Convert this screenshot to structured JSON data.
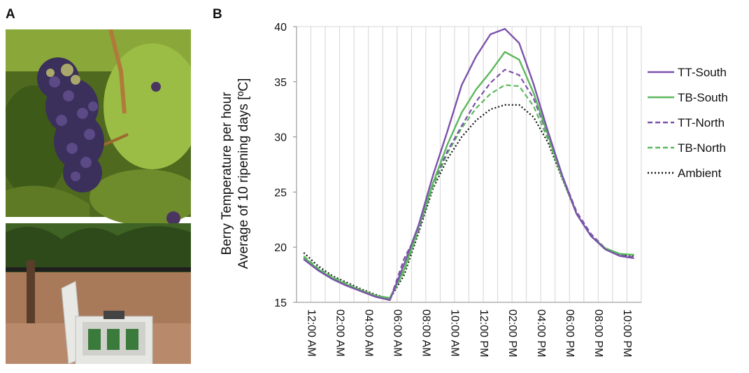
{
  "panels": {
    "a_label": "A",
    "b_label": "B"
  },
  "chart_data": {
    "type": "line",
    "ylabel_line1": "Berry Temperature per hour",
    "ylabel_line2": "Average of 10 ripening days [ºC]",
    "ylim": [
      15,
      40
    ],
    "yticks": [
      "15",
      "20",
      "25",
      "30",
      "35",
      "40"
    ],
    "x": [
      "12:00 AM",
      "01:00 AM",
      "02:00 AM",
      "03:00 AM",
      "04:00 AM",
      "05:00 AM",
      "06:00 AM",
      "07:00 AM",
      "08:00 AM",
      "09:00 AM",
      "10:00 AM",
      "11:00 AM",
      "12:00 PM",
      "01:00 PM",
      "02:00 PM",
      "03:00 PM",
      "04:00 PM",
      "05:00 PM",
      "06:00 PM",
      "07:00 PM",
      "08:00 PM",
      "09:00 PM",
      "10:00 PM",
      "11:00 PM"
    ],
    "xtick_labels": [
      "12:00 AM",
      "02:00 AM",
      "04:00 AM",
      "06:00 AM",
      "08:00 AM",
      "10:00 AM",
      "12:00 PM",
      "02:00 PM",
      "04:00 PM",
      "06:00 PM",
      "08:00 PM",
      "10:00 PM"
    ],
    "grid": "vertical",
    "legend_position": "right",
    "series": [
      {
        "name": "TT-South",
        "color": "#7B52AB",
        "style": "solid",
        "values": [
          18.9,
          17.9,
          17.1,
          16.5,
          16.0,
          15.5,
          15.2,
          18.5,
          22.0,
          26.5,
          30.5,
          34.7,
          37.3,
          39.3,
          39.8,
          38.5,
          34.8,
          30.5,
          26.5,
          23.0,
          21.0,
          19.8,
          19.2,
          19.0
        ]
      },
      {
        "name": "TB-South",
        "color": "#5CB85C",
        "style": "solid",
        "values": [
          19.1,
          18.0,
          17.2,
          16.6,
          16.1,
          15.6,
          15.4,
          18.0,
          21.8,
          25.8,
          29.3,
          32.2,
          34.3,
          35.9,
          37.7,
          37.0,
          34.0,
          30.2,
          26.3,
          23.0,
          21.0,
          19.9,
          19.4,
          19.3
        ]
      },
      {
        "name": "TT-North",
        "color": "#7B52AB",
        "style": "dashed",
        "values": [
          19.0,
          17.9,
          17.1,
          16.5,
          16.0,
          15.5,
          15.2,
          19.0,
          21.5,
          25.8,
          28.7,
          31.0,
          33.2,
          34.9,
          36.1,
          35.6,
          33.5,
          30.1,
          26.5,
          23.2,
          21.2,
          19.9,
          19.3,
          19.1
        ]
      },
      {
        "name": "TB-North",
        "color": "#5CB85C",
        "style": "dashed",
        "values": [
          19.2,
          18.1,
          17.3,
          16.7,
          16.1,
          15.6,
          15.3,
          17.8,
          21.5,
          25.5,
          28.5,
          30.8,
          32.6,
          33.9,
          34.7,
          34.6,
          32.8,
          29.8,
          26.3,
          23.1,
          21.1,
          19.9,
          19.4,
          19.3
        ]
      },
      {
        "name": "Ambient",
        "color": "#111111",
        "style": "dotted",
        "values": [
          19.5,
          18.3,
          17.4,
          16.8,
          16.2,
          15.7,
          15.3,
          17.5,
          21.3,
          25.3,
          28.0,
          30.0,
          31.5,
          32.5,
          32.9,
          32.9,
          31.8,
          29.5,
          26.2,
          23.0,
          21.0,
          19.8,
          19.3,
          19.2
        ]
      }
    ]
  }
}
